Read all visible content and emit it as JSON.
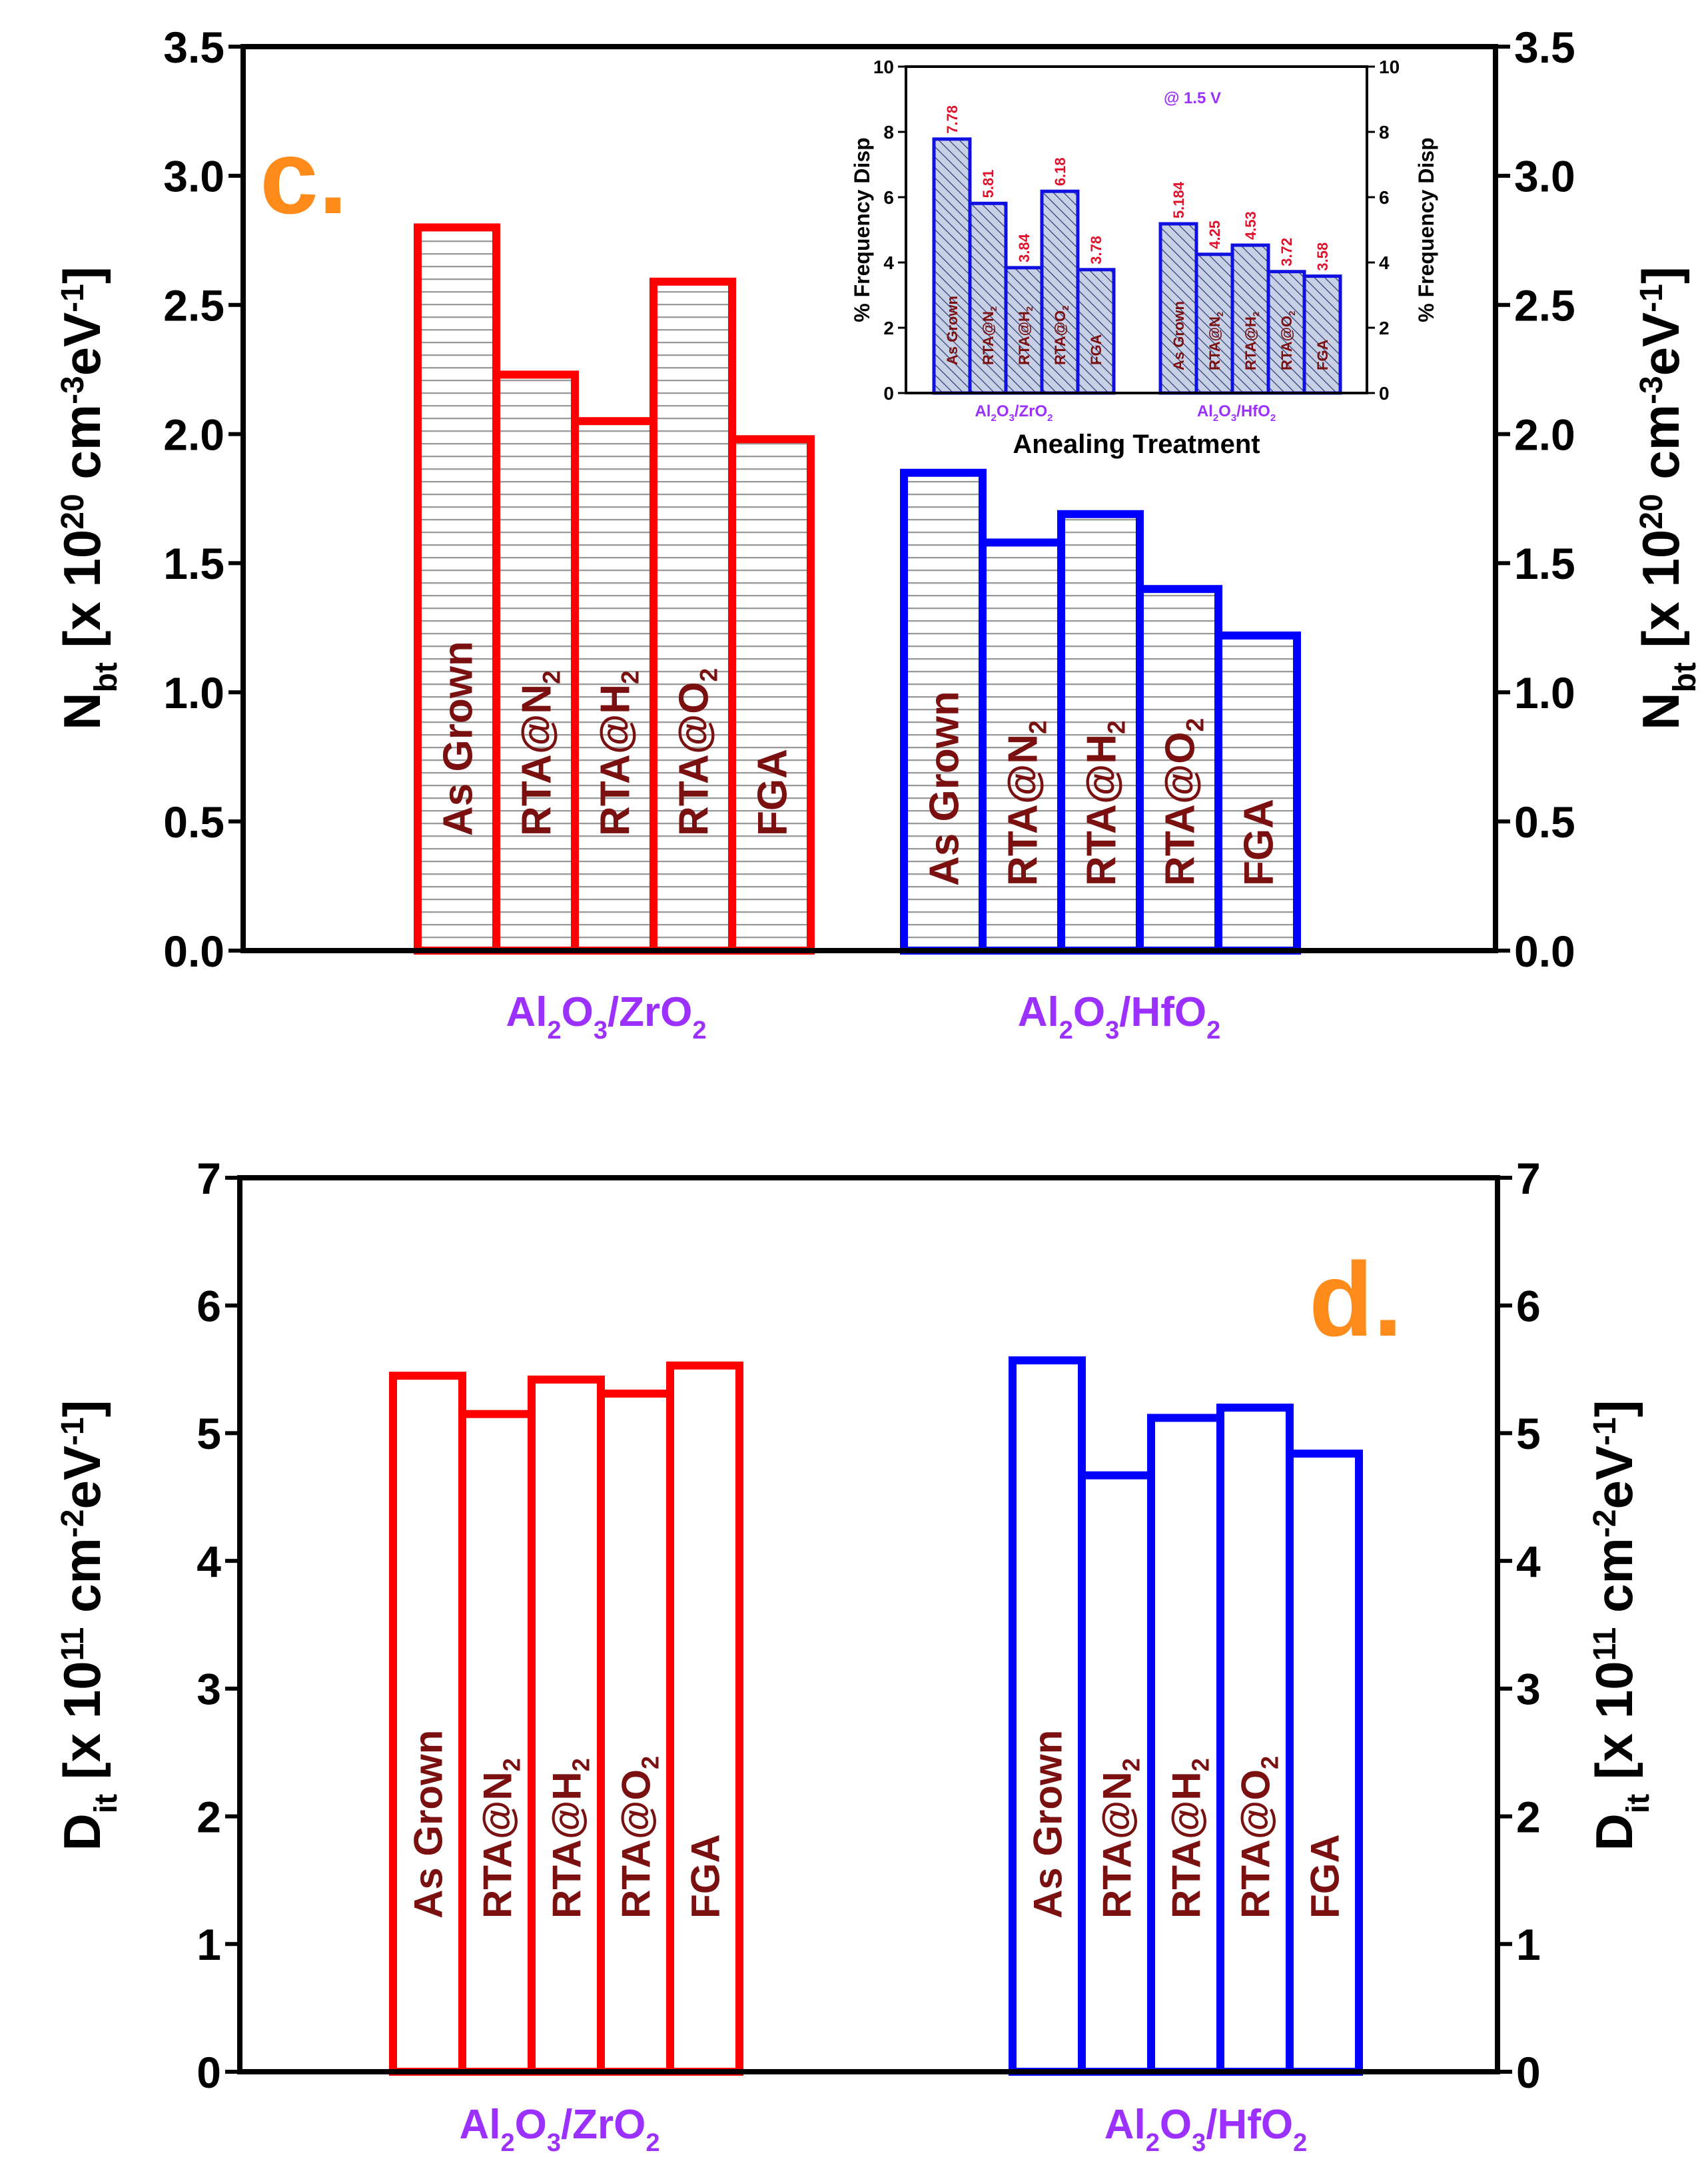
{
  "figure": {
    "panel_c_letter": "c.",
    "panel_d_letter": "d.",
    "letter_color": "#FF8C1A",
    "group_label_color": "#9B30FF",
    "bar_label_color": "#7A1010",
    "series_colors": {
      "Al2O3/ZrO2": "#FF0000",
      "Al2O3/HfO2": "#0000FF"
    },
    "axis_ticks_right_mirrored": true
  },
  "chart_data": [
    {
      "id": "panel-c",
      "type": "bar",
      "title": "",
      "ylabel": "Nbt [x 10^20 cm^-3 eV^-1]",
      "ylabel_parts": {
        "main": "N",
        "sub": "bt",
        "rest_a": " [x 10",
        "sup1": "20",
        "rest_b": " cm",
        "sup2": "-3",
        "rest_c": "eV",
        "sup3": "-1",
        "rest_d": "]"
      },
      "ylim": [
        0,
        3.5
      ],
      "yticks": [
        "0.0",
        "0.5",
        "1.0",
        "1.5",
        "2.0",
        "2.5",
        "3.0",
        "3.5"
      ],
      "fill_pattern": "horizontal-hatch-gray",
      "groups": [
        {
          "name": "Al2O3/ZrO2",
          "label_parts": [
            "Al",
            "2",
            "O",
            "3",
            "/ZrO",
            "2"
          ],
          "categories": [
            "As Grown",
            "RTA@N2",
            "RTA@H2",
            "RTA@O2",
            "FGA"
          ],
          "values": [
            2.8,
            2.23,
            2.05,
            2.59,
            1.98
          ]
        },
        {
          "name": "Al2O3/HfO2",
          "label_parts": [
            "Al",
            "2",
            "O",
            "3",
            "/HfO",
            "2"
          ],
          "categories": [
            "As Grown",
            "RTA@N2",
            "RTA@H2",
            "RTA@O2",
            "FGA"
          ],
          "values": [
            1.85,
            1.58,
            1.69,
            1.4,
            1.22
          ]
        }
      ],
      "bar_labels": [
        {
          "main": "As Grown",
          "sub": ""
        },
        {
          "main": "RTA@N",
          "sub": "2"
        },
        {
          "main": "RTA@H",
          "sub": "2"
        },
        {
          "main": "RTA@O",
          "sub": "2"
        },
        {
          "main": "FGA",
          "sub": ""
        }
      ]
    },
    {
      "id": "panel-c-inset",
      "type": "bar",
      "title": "@ 1.5 V",
      "xlabel": "Anealing Treatment",
      "ylabel": "% Frequency Disp",
      "ylim": [
        0,
        10
      ],
      "yticks": [
        "0",
        "2",
        "4",
        "6",
        "8",
        "10"
      ],
      "fill_pattern": "diagonal-hatch-blue",
      "groups": [
        {
          "name": "Al2O3/ZrO2",
          "label_parts": [
            "Al",
            "2",
            "O",
            "3",
            "/ZrO",
            "2"
          ],
          "categories": [
            "As Grown",
            "RTA@N2",
            "RTA@H2",
            "RTA@O2",
            "FGA"
          ],
          "values": [
            7.78,
            5.81,
            3.84,
            6.18,
            3.78
          ],
          "value_labels": [
            "7.78",
            "5.81",
            "3.84",
            "6.18",
            "3.78"
          ]
        },
        {
          "name": "Al2O3/HfO2",
          "label_parts": [
            "Al",
            "2",
            "O",
            "3",
            "/HfO",
            "2"
          ],
          "categories": [
            "As Grown",
            "RTA@N2",
            "RTA@H2",
            "RTA@O2",
            "FGA"
          ],
          "values": [
            5.184,
            4.25,
            4.53,
            3.72,
            3.58
          ],
          "value_labels": [
            "5.184",
            "4.25",
            "4.53",
            "3.72",
            "3.58"
          ]
        }
      ],
      "bar_labels": [
        {
          "main": "As Grown",
          "sub": ""
        },
        {
          "main": "RTA@N",
          "sub": "2"
        },
        {
          "main": "RTA@H",
          "sub": "2"
        },
        {
          "main": "RTA@O",
          "sub": "2"
        },
        {
          "main": "FGA",
          "sub": ""
        }
      ]
    },
    {
      "id": "panel-d",
      "type": "bar",
      "title": "",
      "ylabel": "Dit [x 10^11 cm^-2 eV^-1]",
      "ylabel_parts": {
        "main": "D",
        "sub": "it",
        "rest_a": " [x 10",
        "sup1": "11",
        "rest_b": " cm",
        "sup2": "-2",
        "rest_c": "eV",
        "sup3": "-1",
        "rest_d": "]"
      },
      "ylim": [
        0,
        7
      ],
      "yticks": [
        "0",
        "1",
        "2",
        "3",
        "4",
        "5",
        "6",
        "7"
      ],
      "fill_pattern": "none",
      "groups": [
        {
          "name": "Al2O3/ZrO2",
          "label_parts": [
            "Al",
            "2",
            "O",
            "3",
            "/ZrO",
            "2"
          ],
          "categories": [
            "As Grown",
            "RTA@N2",
            "RTA@H2",
            "RTA@O2",
            "FGA"
          ],
          "values": [
            5.45,
            5.15,
            5.42,
            5.31,
            5.53
          ]
        },
        {
          "name": "Al2O3/HfO2",
          "label_parts": [
            "Al",
            "2",
            "O",
            "3",
            "/HfO",
            "2"
          ],
          "categories": [
            "As Grown",
            "RTA@N2",
            "RTA@H2",
            "RTA@O2",
            "FGA"
          ],
          "values": [
            5.57,
            4.67,
            5.12,
            5.2,
            4.84
          ]
        }
      ],
      "bar_labels": [
        {
          "main": "As Grown",
          "sub": ""
        },
        {
          "main": "RTA@N",
          "sub": "2"
        },
        {
          "main": "RTA@H",
          "sub": "2"
        },
        {
          "main": "RTA@O",
          "sub": "2"
        },
        {
          "main": "FGA",
          "sub": ""
        }
      ]
    }
  ]
}
